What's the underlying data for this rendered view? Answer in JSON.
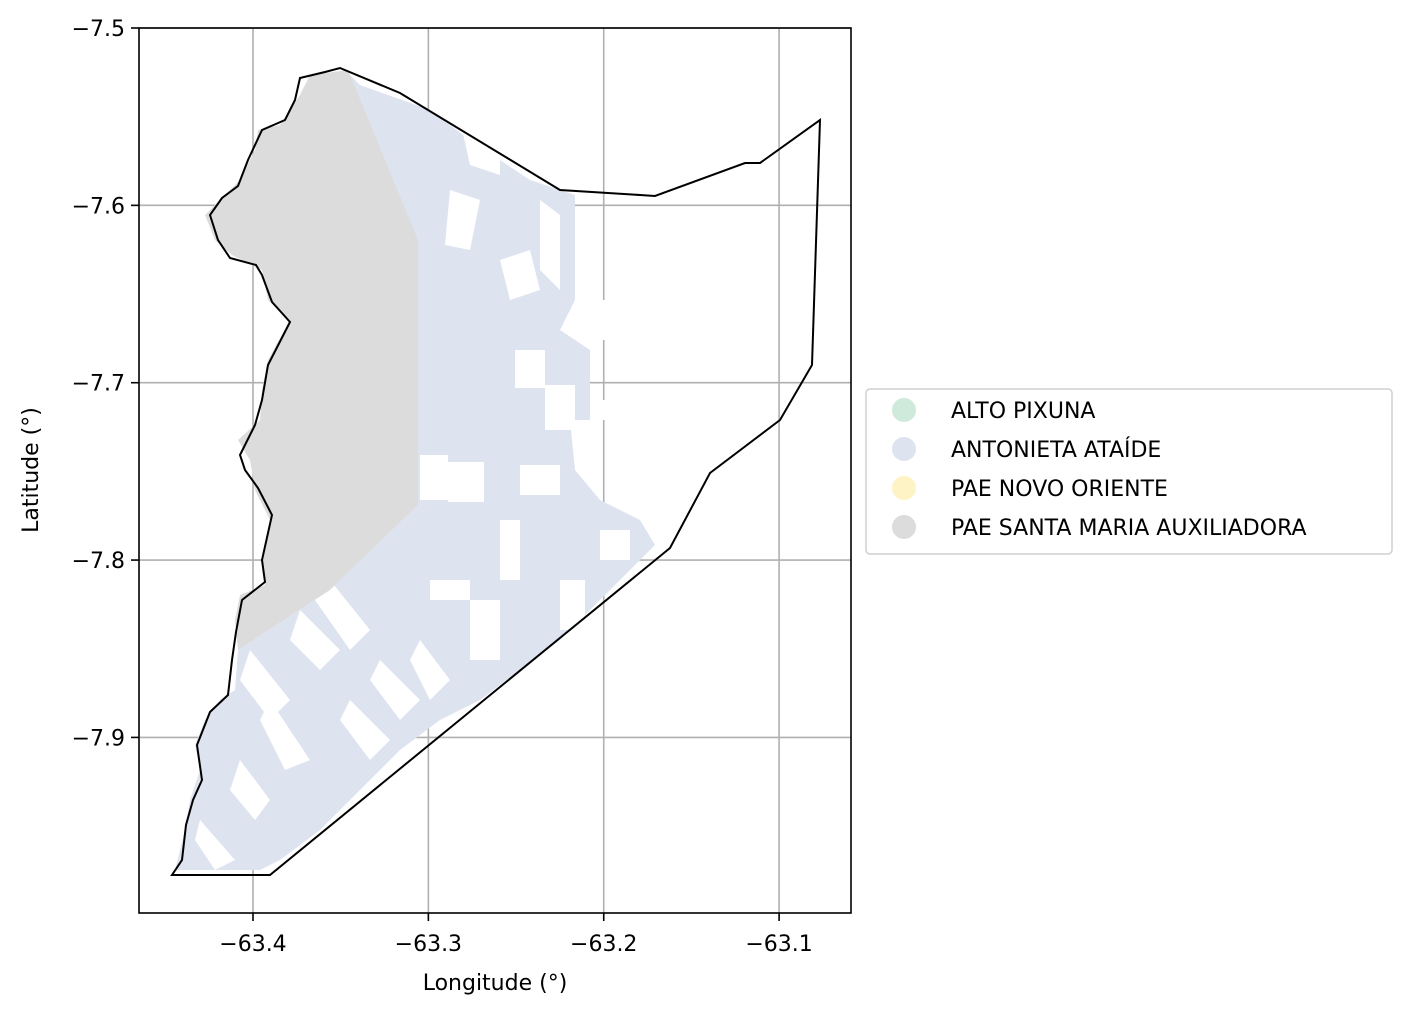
{
  "map": {
    "xlabel": "Longitude (°)",
    "ylabel": "Latitude (°)",
    "xlim": [
      -63.465,
      -63.059
    ],
    "ylim": [
      -7.999,
      -7.5
    ],
    "grid": true,
    "xticks": [
      {
        "value": -63.4,
        "label": "−63.4"
      },
      {
        "value": -63.3,
        "label": "−63.3"
      },
      {
        "value": -63.2,
        "label": "−63.2"
      },
      {
        "value": -63.1,
        "label": "−63.1"
      }
    ],
    "yticks": [
      {
        "value": -7.5,
        "label": "−7.5"
      },
      {
        "value": -7.6,
        "label": "−7.6"
      },
      {
        "value": -7.7,
        "label": "−7.7"
      },
      {
        "value": -7.8,
        "label": "−7.8"
      },
      {
        "value": -7.9,
        "label": "−7.9"
      }
    ],
    "legend": {
      "placement": "center-left outside plot",
      "entries": [
        {
          "label": "ALTO PIXUNA",
          "color": "#cfeadb"
        },
        {
          "label": "ANTONIETA ATAÍDE",
          "color": "#dee3f0"
        },
        {
          "label": "PAE NOVO ORIENTE",
          "color": "#fdf3c4"
        },
        {
          "label": "PAE SANTA MARIA AUXILIADORA",
          "color": "#dcdcdc"
        }
      ]
    },
    "boundary_color": "#000000"
  }
}
